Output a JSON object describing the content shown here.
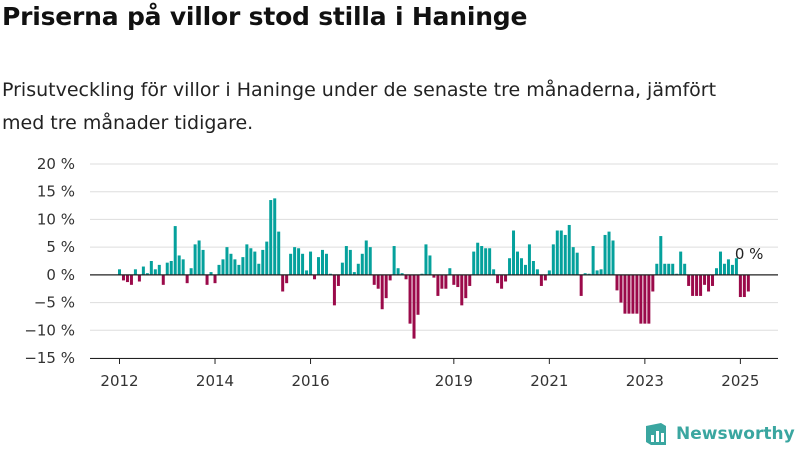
{
  "title": "Priserna på villor stod stilla i Haninge",
  "subtitle": "Prisutveckling för villor i Haninge under de senaste tre månaderna, jämfört med tre månader tidigare.",
  "brand": "Newsworthy",
  "colors": {
    "positive": "#05a19c",
    "negative": "#9b0a4a",
    "grid": "#dddddd",
    "axis": "#222222",
    "brand": "#3aa6a0"
  },
  "chart_data": {
    "type": "bar",
    "title": "Priserna på villor stod stilla i Haninge",
    "xlabel": "",
    "ylabel": "",
    "ylim": [
      -15,
      20
    ],
    "yticks": [
      20,
      15,
      10,
      5,
      0,
      -5,
      -10,
      -15
    ],
    "ytick_labels": [
      "20 %",
      "15 %",
      "10 %",
      "5 %",
      "0 %",
      "−5 %",
      "−10 %",
      "−15 %"
    ],
    "xticks": [
      "2012",
      "2014",
      "2016",
      "2019",
      "2021",
      "2023",
      "2025"
    ],
    "annotation": "0 %",
    "grid": true,
    "series": [
      {
        "values": [
          1,
          -1,
          -1.3,
          -1.8,
          1,
          -1.2,
          1.5,
          0.3,
          2.5,
          1,
          1.8,
          -1.8,
          2.2,
          2.5,
          8.8,
          3.5,
          2.8,
          -1.5,
          1.2,
          5.5,
          6.2,
          4.5,
          -1.8,
          0.5,
          -1.5,
          1.8,
          2.8,
          5,
          3.8,
          2.8,
          1.8,
          3.2,
          5.5,
          4.8,
          4.2,
          2,
          4.5,
          6,
          13.5,
          13.8,
          7.8,
          -3,
          -1.5,
          3.8,
          5,
          4.8,
          3.8,
          0.8,
          4.2,
          -0.8,
          3.2,
          4.5,
          3.8,
          0.2,
          -5.5,
          -2,
          2.2,
          5.2,
          4.5,
          0.5,
          2,
          3.8,
          6.2,
          5,
          -1.8,
          -2.5,
          -6.2,
          -4.2,
          -1,
          5.2,
          1.2,
          0.3,
          -0.8,
          -8.8,
          -11.5,
          -7.2,
          0.2,
          5.5,
          3.5,
          -0.5,
          -3.8,
          -2.5,
          -2.5,
          1.2,
          -1.8,
          -2.2,
          -5.5,
          -4.2,
          -2,
          4.2,
          5.8,
          5.2,
          4.8,
          4.8,
          1,
          -1.5,
          -2.5,
          -1.2,
          3,
          8,
          4.2,
          3,
          1.8,
          5.5,
          2.5,
          1,
          -2,
          -1,
          0.8,
          5.5,
          8,
          8,
          7.2,
          9,
          5,
          4,
          -3.8,
          0.3,
          0.2,
          5.2,
          0.8,
          1,
          7.2,
          7.8,
          6.2,
          -2.8,
          -5,
          -7,
          -7,
          -7,
          -7,
          -8.8,
          -8.8,
          -8.8,
          -3,
          2,
          7,
          2,
          2,
          2,
          0.2,
          4.2,
          2,
          -2,
          -3.8,
          -3.8,
          -3.8,
          -1.8,
          -3,
          -2,
          1.2,
          4.2,
          2,
          2.8,
          1.8,
          3,
          -4,
          -4,
          -3
        ]
      }
    ]
  }
}
